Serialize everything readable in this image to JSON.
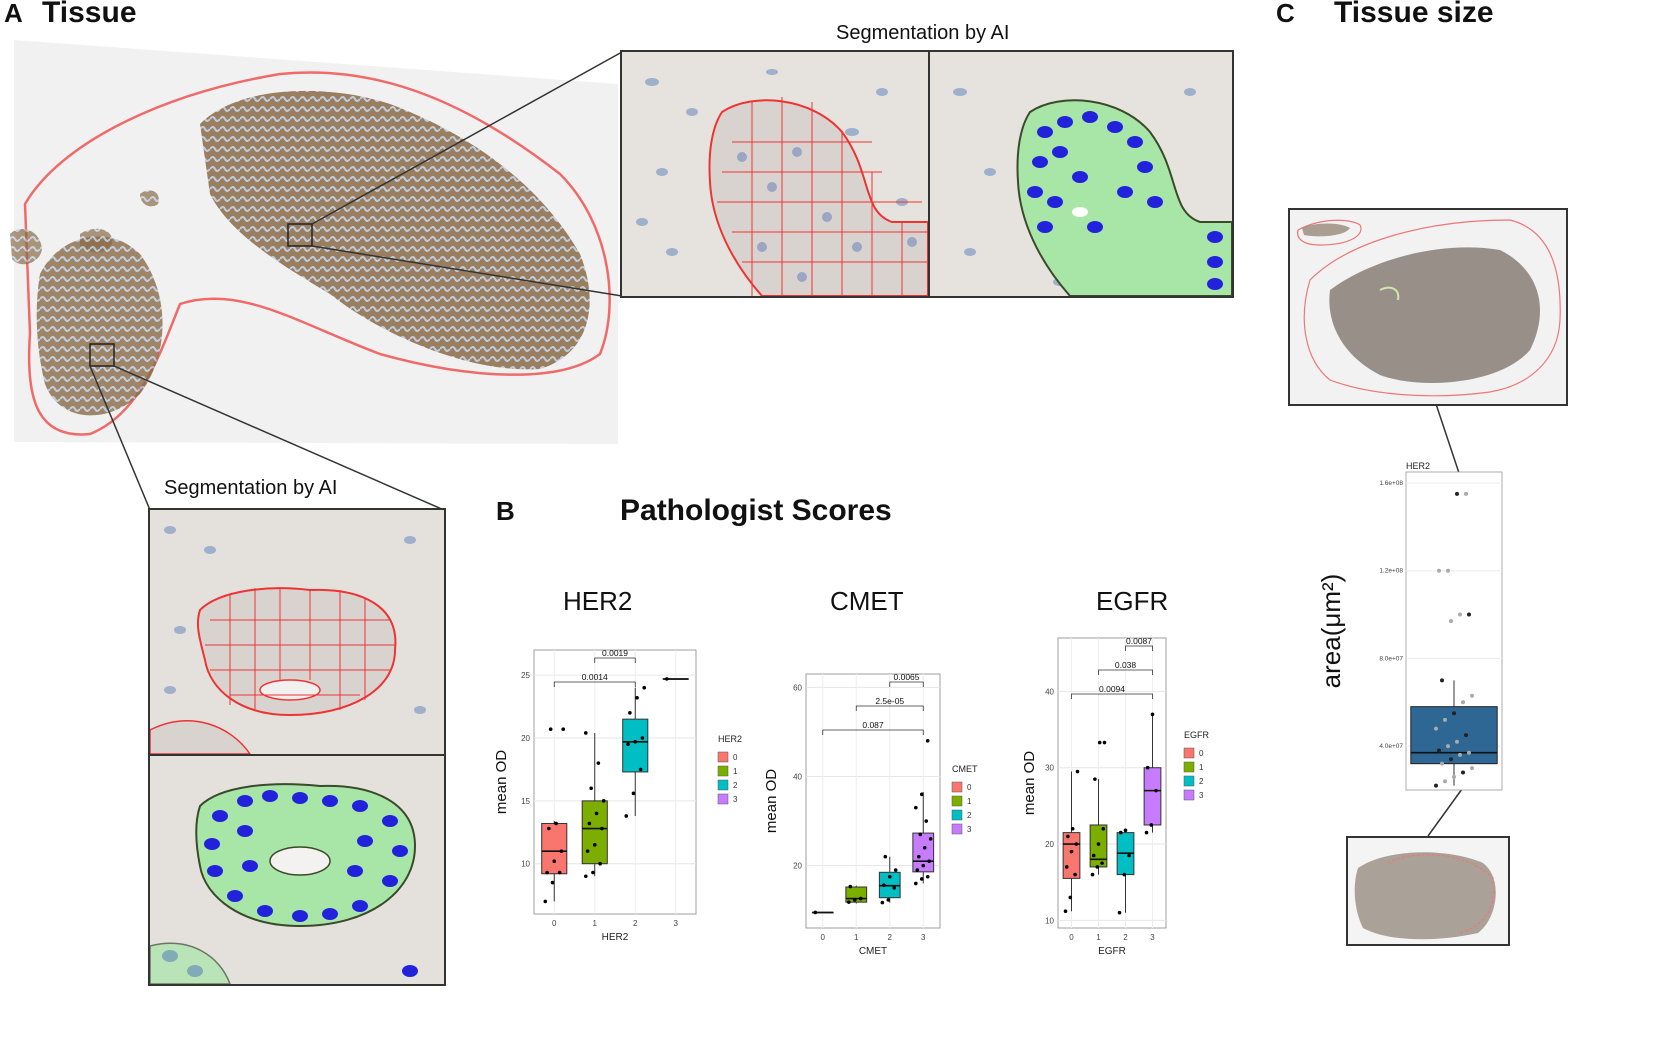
{
  "panels": {
    "a": {
      "letter": "A",
      "title": "Tissue",
      "seg_title_top": "Segmentation by AI",
      "seg_title_bottom": "Segmentation by AI"
    },
    "b": {
      "letter": "B",
      "title": "Pathologist Scores"
    },
    "c": {
      "letter": "C",
      "title": "Tissue size"
    }
  },
  "chart_data": [
    {
      "id": "her2",
      "type": "box",
      "title": "HER2",
      "xlabel": "HER2",
      "ylabel": "mean OD",
      "categories": [
        "0",
        "1",
        "2",
        "3"
      ],
      "ylim": [
        6,
        27
      ],
      "yticks": [
        10,
        15,
        20,
        25
      ],
      "legend": {
        "title": "HER2",
        "entries": [
          "0",
          "1",
          "2",
          "3"
        ]
      },
      "series": [
        {
          "name": "0",
          "color": "#F8766D",
          "min": 7,
          "q1": 9.2,
          "median": 11,
          "q3": 13.2,
          "max": 13.4,
          "points": [
            7,
            8.5,
            9.3,
            9.3,
            10.2,
            11,
            12.8,
            13.2,
            20.7,
            20.7
          ]
        },
        {
          "name": "1",
          "color": "#7CAE00",
          "min": 9,
          "q1": 10,
          "median": 12.8,
          "q3": 15,
          "max": 20.4,
          "points": [
            9,
            9.3,
            10,
            11,
            11.5,
            12.8,
            13.2,
            14,
            15,
            16,
            18,
            20.4
          ]
        },
        {
          "name": "2",
          "color": "#00BFC4",
          "min": 13.8,
          "q1": 17.3,
          "median": 19.7,
          "q3": 21.5,
          "max": 24,
          "points": [
            13.8,
            15.6,
            17.5,
            19.5,
            19.7,
            20,
            22,
            23.2,
            24
          ]
        },
        {
          "name": "3",
          "color": "#C77CFF",
          "min": 24.7,
          "q1": 24.7,
          "median": 24.7,
          "q3": 24.7,
          "max": 24.7,
          "points": [
            24.7
          ]
        }
      ],
      "comparisons": [
        {
          "from": "1",
          "to": "2",
          "label": "0.0019"
        },
        {
          "from": "0",
          "to": "2",
          "label": "0.0014"
        }
      ]
    },
    {
      "id": "cmet",
      "type": "box",
      "title": "CMET",
      "xlabel": "CMET",
      "ylabel": "mean OD",
      "categories": [
        "0",
        "1",
        "2",
        "3"
      ],
      "ylim": [
        6,
        63
      ],
      "yticks": [
        20,
        40,
        60
      ],
      "legend": {
        "title": "CMET",
        "entries": [
          "0",
          "1",
          "2",
          "3"
        ]
      },
      "series": [
        {
          "name": "0",
          "color": "#F8766D",
          "min": 9.5,
          "q1": 9.5,
          "median": 9.5,
          "q3": 9.5,
          "max": 9.5,
          "points": [
            9.5
          ]
        },
        {
          "name": "1",
          "color": "#7CAE00",
          "min": 11.5,
          "q1": 11.8,
          "median": 12.6,
          "q3": 15.2,
          "max": 15.5,
          "points": [
            11.8,
            12.3,
            12.6,
            15.3
          ]
        },
        {
          "name": "2",
          "color": "#00BFC4",
          "min": 11.7,
          "q1": 12.8,
          "median": 15.5,
          "q3": 18.5,
          "max": 22,
          "points": [
            11.7,
            12.3,
            15,
            15.6,
            17.5,
            19,
            22
          ]
        },
        {
          "name": "3",
          "color": "#C77CFF",
          "min": 16,
          "q1": 18.6,
          "median": 21,
          "q3": 27.3,
          "max": 36.5,
          "points": [
            16,
            17,
            17.5,
            19,
            20,
            21,
            22,
            24,
            26,
            27,
            30,
            33,
            36,
            48
          ]
        }
      ],
      "comparisons": [
        {
          "from": "2",
          "to": "3",
          "label": "0.0065"
        },
        {
          "from": "1",
          "to": "3",
          "label": "2.5e-05"
        },
        {
          "from": "0",
          "to": "3",
          "label": "0.087"
        }
      ]
    },
    {
      "id": "egfr",
      "type": "box",
      "title": "EGFR",
      "xlabel": "EGFR",
      "ylabel": "mean OD",
      "categories": [
        "0",
        "1",
        "2",
        "3"
      ],
      "ylim": [
        9,
        47
      ],
      "yticks": [
        10,
        20,
        30,
        40
      ],
      "legend": {
        "title": "EGFR",
        "entries": [
          "0",
          "1",
          "2",
          "3"
        ]
      },
      "series": [
        {
          "name": "0",
          "color": "#F8766D",
          "min": 11.2,
          "q1": 15.5,
          "median": 20,
          "q3": 21.5,
          "max": 29.5,
          "points": [
            11.2,
            13,
            16,
            17,
            19,
            20,
            21,
            22,
            29.5
          ]
        },
        {
          "name": "1",
          "color": "#7CAE00",
          "min": 16,
          "q1": 17,
          "median": 18,
          "q3": 22.5,
          "max": 28.5,
          "points": [
            16,
            17,
            17.5,
            18.5,
            20,
            22,
            28.5,
            33.3,
            33.3
          ]
        },
        {
          "name": "2",
          "color": "#00BFC4",
          "min": 11,
          "q1": 16,
          "median": 18.8,
          "q3": 21.5,
          "max": 21.8,
          "points": [
            11,
            16,
            18.5,
            21.5,
            21.8
          ]
        },
        {
          "name": "3",
          "color": "#C77CFF",
          "min": 21.5,
          "q1": 22.5,
          "median": 27,
          "q3": 30,
          "max": 37,
          "points": [
            21.5,
            22.5,
            27,
            30,
            37
          ]
        }
      ],
      "comparisons": [
        {
          "from": "2",
          "to": "3",
          "label": "0.0087"
        },
        {
          "from": "1",
          "to": "3",
          "label": "0.038"
        },
        {
          "from": "0",
          "to": "3",
          "label": "0.0094"
        }
      ]
    },
    {
      "id": "tissue-size",
      "type": "box",
      "title": "HER2",
      "xlabel": "",
      "ylabel": "area(μm²)",
      "categories": [
        "HER2"
      ],
      "ylim": [
        20000000,
        165000000
      ],
      "yticks": [
        40000000,
        80000000,
        120000000,
        160000000
      ],
      "ytick_labels": [
        "4.0e+07",
        "8.0e+07",
        "1.2e+08",
        "1.6e+08"
      ],
      "series": [
        {
          "name": "HER2",
          "color": "#2E6694",
          "min": 22000000,
          "q1": 32000000,
          "median": 37000000,
          "q3": 58000000,
          "max": 70000000,
          "points": [
            22000000,
            24000000,
            26000000,
            28000000,
            30000000,
            32000000,
            34000000,
            36000000,
            37000000,
            38000000,
            40000000,
            42000000,
            45000000,
            48000000,
            52000000,
            55000000,
            60000000,
            63000000,
            70000000,
            97000000,
            100000000,
            100000000,
            120000000,
            120000000,
            155000000,
            155000000
          ]
        }
      ]
    }
  ]
}
